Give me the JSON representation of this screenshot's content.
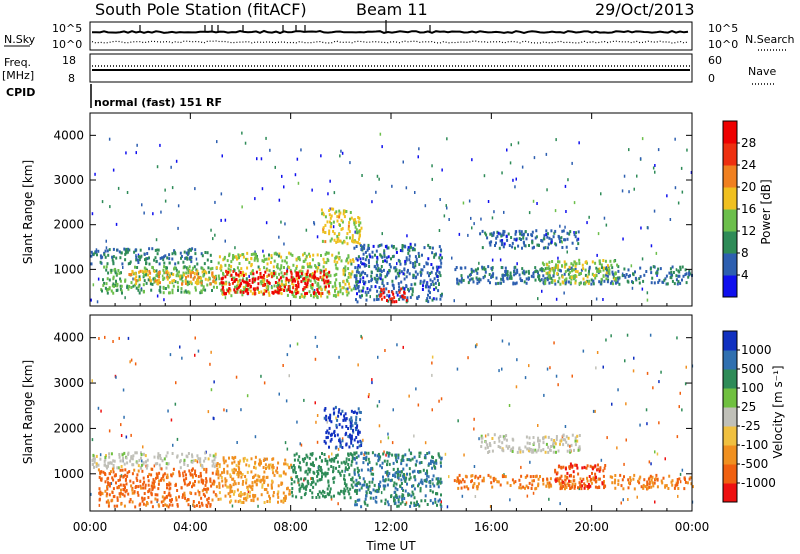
{
  "header": {
    "title": "South Pole Station (fitACF)",
    "beam": "Beam 11",
    "date": "29/Oct/2013"
  },
  "top_panels": {
    "nsky_label": "N.Sky",
    "nsky_ticks": [
      "10^5",
      "10^0"
    ],
    "nsearch_label": "N.Search",
    "nsearch_ticks": [
      "10^5",
      "10^0"
    ],
    "freq_label_1": "Freq.",
    "freq_label_2": "[MHz]",
    "freq_ticks": [
      "18",
      "8"
    ],
    "nave_label": "Nave",
    "nave_ticks": [
      "60",
      "0"
    ],
    "cpid_label": "CPID",
    "cpid_text": "normal (fast) 151 RF"
  },
  "colors": {
    "power_scale": [
      "#1010ee",
      "#2d5fb0",
      "#2e8b57",
      "#6cbf4b",
      "#f0c020",
      "#f08020",
      "#ee3010",
      "#ee0000"
    ],
    "velocity_scale": [
      "#1030c0",
      "#3070b0",
      "#2e8b57",
      "#70c040",
      "#c0c0b8",
      "#f0c040",
      "#f09020",
      "#f06010",
      "#ee1010"
    ]
  },
  "chart_data": [
    {
      "type": "heatmap",
      "title": "",
      "ylabel": "Slant Range [km]",
      "xlabel": "",
      "x_ticks": [
        "00:00",
        "04:00",
        "08:00",
        "12:00",
        "16:00",
        "20:00",
        "00:00"
      ],
      "y_ticks": [
        "1000",
        "2000",
        "3000",
        "4000"
      ],
      "xlim_hours": [
        0,
        24
      ],
      "ylim_km": [
        180,
        4500
      ],
      "colorbar": {
        "label": "Power [dB]",
        "ticks": [
          "4",
          "8",
          "12",
          "16",
          "20",
          "24",
          "28"
        ],
        "range": [
          0,
          30
        ]
      },
      "regions": [
        {
          "t0": 0.0,
          "t1": 4.8,
          "r0": 1150,
          "r1": 1500,
          "value": 8
        },
        {
          "t0": 0.4,
          "t1": 5.0,
          "r0": 500,
          "r1": 1100,
          "value": 12
        },
        {
          "t0": 1.5,
          "t1": 5.0,
          "r0": 700,
          "r1": 1000,
          "value": 18
        },
        {
          "t0": 5.0,
          "t1": 10.5,
          "r0": 400,
          "r1": 1400,
          "value": 14
        },
        {
          "t0": 5.2,
          "t1": 9.5,
          "r0": 480,
          "r1": 1000,
          "value": 28
        },
        {
          "t0": 9.2,
          "t1": 10.8,
          "r0": 1600,
          "r1": 2400,
          "value": 16
        },
        {
          "t0": 10.5,
          "t1": 14.0,
          "r0": 300,
          "r1": 1600,
          "value": 6
        },
        {
          "t0": 11.5,
          "t1": 12.6,
          "r0": 300,
          "r1": 600,
          "value": 26
        },
        {
          "t0": 14.5,
          "t1": 24.0,
          "r0": 700,
          "r1": 1100,
          "value": 7
        },
        {
          "t0": 18.0,
          "t1": 21.0,
          "r0": 700,
          "r1": 1250,
          "value": 14
        },
        {
          "t0": 15.5,
          "t1": 19.5,
          "r0": 1500,
          "r1": 1900,
          "value": 6
        }
      ]
    },
    {
      "type": "heatmap",
      "title": "",
      "ylabel": "Slant Range [km]",
      "xlabel": "Time UT",
      "x_ticks": [
        "00:00",
        "04:00",
        "08:00",
        "12:00",
        "16:00",
        "20:00",
        "00:00"
      ],
      "y_ticks": [
        "1000",
        "2000",
        "3000",
        "4000"
      ],
      "xlim_hours": [
        0,
        24
      ],
      "ylim_km": [
        180,
        4500
      ],
      "colorbar": {
        "label": "Velocity [m s⁻¹]",
        "ticks": [
          "1000",
          "500",
          "100",
          "25",
          "-25",
          "-100",
          "-500",
          "-1000"
        ]
      },
      "regions": [
        {
          "t0": 0.0,
          "t1": 5.0,
          "r0": 1150,
          "r1": 1500,
          "value": 0
        },
        {
          "t0": 0.3,
          "t1": 5.0,
          "r0": 300,
          "r1": 1150,
          "value": -400
        },
        {
          "t0": 5.0,
          "t1": 8.0,
          "r0": 400,
          "r1": 1400,
          "value": -80
        },
        {
          "t0": 8.0,
          "t1": 10.5,
          "r0": 500,
          "r1": 1500,
          "value": 150
        },
        {
          "t0": 9.3,
          "t1": 10.8,
          "r0": 1600,
          "r1": 2500,
          "value": 900
        },
        {
          "t0": 10.5,
          "t1": 14.0,
          "r0": 300,
          "r1": 1500,
          "value": 300
        },
        {
          "t0": 14.5,
          "t1": 24.0,
          "r0": 700,
          "r1": 1000,
          "value": -300
        },
        {
          "t0": 15.5,
          "t1": 19.5,
          "r0": 1500,
          "r1": 1900,
          "value": 0
        },
        {
          "t0": 18.5,
          "t1": 20.5,
          "r0": 700,
          "r1": 1250,
          "value": -600
        }
      ]
    }
  ]
}
